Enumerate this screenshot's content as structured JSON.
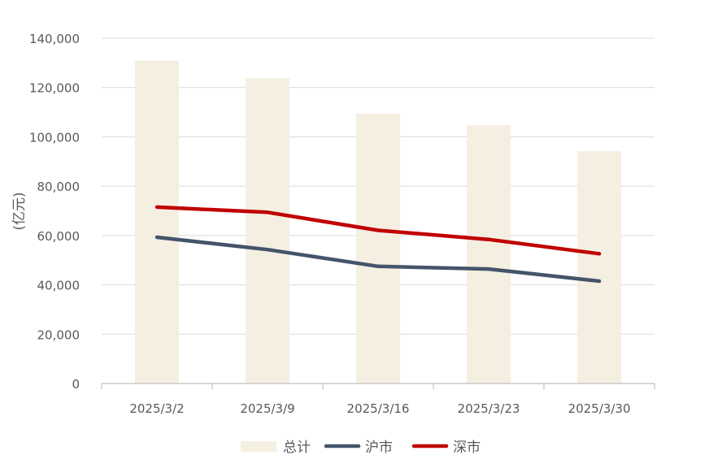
{
  "chart_data": {
    "type": "bar",
    "title": "",
    "xlabel": "",
    "ylabel": "(亿元)",
    "ylim": [
      0,
      140000
    ],
    "yticks": [
      0,
      20000,
      40000,
      60000,
      80000,
      100000,
      120000,
      140000
    ],
    "ytick_labels": [
      "0",
      "20,000",
      "40,000",
      "60,000",
      "80,000",
      "100,000",
      "120,000",
      "140,000"
    ],
    "grid": true,
    "legend_position": "bottom",
    "categories": [
      "2025/3/2",
      "2025/3/9",
      "2025/3/16",
      "2025/3/23",
      "2025/3/30"
    ],
    "series": [
      {
        "name": "总计",
        "type": "bar",
        "color": "#f5efe2",
        "values": [
          130800,
          123700,
          109400,
          104800,
          94200
        ]
      },
      {
        "name": "沪市",
        "type": "line",
        "color": "#44546a",
        "values": [
          59300,
          54300,
          47500,
          46400,
          41500
        ]
      },
      {
        "name": "深市",
        "type": "line",
        "color": "#c00000",
        "values": [
          71500,
          69400,
          62100,
          58400,
          52600
        ]
      }
    ]
  }
}
